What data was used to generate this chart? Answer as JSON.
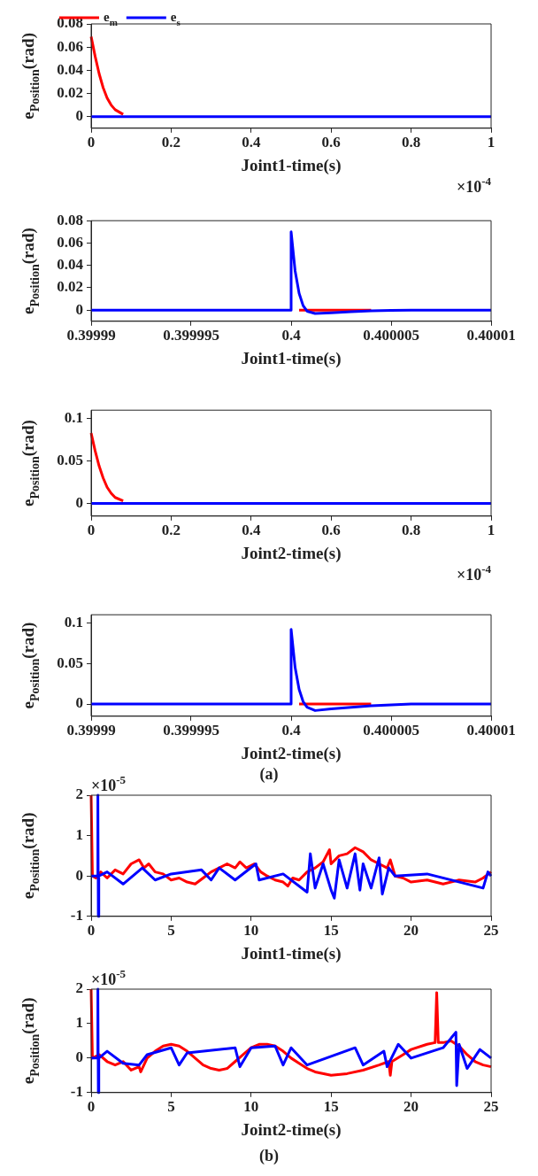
{
  "chart_data": [
    {
      "type": "line",
      "xlabel": "Joint1-time(s)",
      "ylabel": "e$_{Position}$(rad)",
      "xlim": [
        0,
        1
      ],
      "xticks": [
        0,
        0.2,
        0.4,
        0.6,
        0.8,
        1
      ],
      "ylim": [
        -0.01,
        0.08
      ],
      "yticks": [
        0,
        0.02,
        0.04,
        0.06,
        0.08
      ],
      "legend": "top left",
      "annotations": [
        "×10$^{-4}$"
      ],
      "series": [
        {
          "name": "e$_{m}$",
          "color": "#ff0000",
          "x": [
            0,
            0.01,
            0.02,
            0.03,
            0.04,
            0.05,
            0.06,
            0.08
          ],
          "values": [
            0.069,
            0.052,
            0.037,
            0.025,
            0.016,
            0.01,
            0.006,
            0.002
          ]
        },
        {
          "name": "e$_{s}$",
          "color": "#0000ff",
          "x": [
            0,
            1
          ],
          "values": [
            0,
            0
          ]
        }
      ]
    },
    {
      "type": "line",
      "xlabel": "Joint1-time(s)",
      "ylabel": "e$_{Position}$(rad)",
      "xlim": [
        0.39999,
        0.40001
      ],
      "xticks": [
        0.39999,
        0.399995,
        0.4,
        0.400005,
        0.40001
      ],
      "ylim": [
        -0.01,
        0.08
      ],
      "yticks": [
        0,
        0.02,
        0.04,
        0.06,
        0.08
      ],
      "series": [
        {
          "color": "#ff0000",
          "x": [
            0.4000004,
            0.400004
          ],
          "values": [
            0,
            0
          ]
        },
        {
          "color": "#0000ff",
          "x": [
            0.39999,
            0.4,
            0.4,
            0.4000002,
            0.4000004,
            0.4000006,
            0.4000008,
            0.4000012,
            0.400002,
            0.400003,
            0.400004,
            0.400005,
            0.400006,
            0.40001
          ],
          "values": [
            0,
            0,
            0.07,
            0.035,
            0.015,
            0.004,
            -0.001,
            -0.003,
            -0.0025,
            -0.0015,
            -0.0007,
            -0.0002,
            0,
            0
          ]
        }
      ]
    },
    {
      "type": "line",
      "xlabel": "Joint2-time(s)",
      "ylabel": "e$_{Position}$(rad)",
      "xlim": [
        0,
        1
      ],
      "xticks": [
        0,
        0.2,
        0.4,
        0.6,
        0.8,
        1
      ],
      "ylim": [
        -0.015,
        0.11
      ],
      "yticks": [
        0,
        0.05,
        0.1
      ],
      "annotations": [
        "×10$^{-4}$"
      ],
      "series": [
        {
          "color": "#ff0000",
          "x": [
            0,
            0.01,
            0.02,
            0.03,
            0.04,
            0.05,
            0.06,
            0.08
          ],
          "values": [
            0.083,
            0.062,
            0.044,
            0.03,
            0.019,
            0.012,
            0.007,
            0.003
          ]
        },
        {
          "color": "#0000ff",
          "x": [
            0,
            1
          ],
          "values": [
            0,
            0
          ]
        }
      ]
    },
    {
      "type": "line",
      "xlabel": "Joint2-time(s)",
      "ylabel": "e$_{Position}$(rad)",
      "xlim": [
        0.39999,
        0.40001
      ],
      "xticks": [
        0.39999,
        0.399995,
        0.4,
        0.400005,
        0.40001
      ],
      "ylim": [
        -0.015,
        0.11
      ],
      "yticks": [
        0,
        0.05,
        0.1
      ],
      "annotations": [
        "(a)"
      ],
      "series": [
        {
          "color": "#ff0000",
          "x": [
            0.4000004,
            0.400004
          ],
          "values": [
            0,
            0
          ]
        },
        {
          "color": "#0000ff",
          "x": [
            0.39999,
            0.4,
            0.4,
            0.4000002,
            0.4000004,
            0.4000006,
            0.4000008,
            0.4000012,
            0.400002,
            0.400003,
            0.400004,
            0.400005,
            0.400006,
            0.40001
          ],
          "values": [
            0,
            0,
            0.092,
            0.045,
            0.018,
            0.003,
            -0.004,
            -0.008,
            -0.006,
            -0.004,
            -0.002,
            -0.001,
            0,
            0
          ]
        }
      ]
    },
    {
      "type": "line",
      "xlabel": "Joint1-time(s)",
      "ylabel": "e$_{Position}$(rad)",
      "xlim": [
        0,
        25
      ],
      "xticks": [
        0,
        5,
        10,
        15,
        20,
        25
      ],
      "ylim": [
        -1,
        2
      ],
      "yticks": [
        -1,
        0,
        1,
        2
      ],
      "annotations": [
        "×10$^{-5}$"
      ],
      "series": [
        {
          "color": "#ff0000",
          "x": [
            0,
            0.05,
            0.08,
            0.3,
            0.6,
            1,
            1.5,
            2,
            2.5,
            3,
            3.3,
            3.6,
            4,
            4.5,
            5,
            5.5,
            6,
            6.5,
            7,
            7.5,
            8,
            8.5,
            9,
            9.3,
            9.7,
            10.2,
            10.6,
            11,
            11.5,
            12,
            12.3,
            12.6,
            13,
            13.5,
            14,
            14.5,
            14.9,
            15,
            15.5,
            16,
            16.5,
            17,
            17.5,
            18,
            18.5,
            18.7,
            19,
            19.5,
            20,
            21,
            22,
            23,
            24,
            24.5,
            25
          ],
          "values": [
            2,
            2,
            0,
            -0.05,
            0.1,
            -0.05,
            0.15,
            0.05,
            0.3,
            0.4,
            0.2,
            0.3,
            0.1,
            0.05,
            -0.1,
            -0.05,
            -0.15,
            -0.2,
            -0.05,
            0.1,
            0.2,
            0.3,
            0.2,
            0.35,
            0.2,
            0.3,
            0.1,
            0,
            -0.1,
            -0.15,
            -0.25,
            -0.05,
            -0.1,
            0.1,
            0.2,
            0.35,
            0.65,
            0.3,
            0.5,
            0.55,
            0.7,
            0.6,
            0.4,
            0.3,
            0.2,
            0.4,
            0,
            -0.05,
            -0.15,
            -0.1,
            -0.2,
            -0.1,
            -0.15,
            -0.05,
            0.1
          ]
        },
        {
          "color": "#0000ff",
          "x": [
            0,
            0.4,
            0.42,
            0.45,
            0.48,
            1,
            2,
            3.2,
            4,
            5,
            6.9,
            7.5,
            8,
            9,
            10.3,
            10.5,
            12,
            13.5,
            13.7,
            14,
            14.5,
            15,
            15.2,
            15.5,
            16,
            16.5,
            16.8,
            17,
            17.5,
            18,
            18.2,
            18.6,
            19,
            21,
            24.5,
            24.8,
            25
          ],
          "values": [
            0,
            0,
            2,
            -1,
            0,
            0.1,
            -0.2,
            0.2,
            -0.1,
            0.05,
            0.15,
            -0.1,
            0.2,
            -0.1,
            0.3,
            -0.1,
            0.05,
            -0.4,
            0.55,
            -0.3,
            0.3,
            -0.35,
            -0.55,
            0.4,
            -0.3,
            0.55,
            -0.35,
            0.3,
            -0.3,
            0.45,
            -0.45,
            0.2,
            0,
            0.05,
            -0.3,
            0.1,
            0
          ]
        }
      ]
    },
    {
      "type": "line",
      "xlabel": "Joint2-time(s)",
      "ylabel": "e$_{Position}$(rad)",
      "xlim": [
        0,
        25
      ],
      "xticks": [
        0,
        5,
        10,
        15,
        20,
        25
      ],
      "ylim": [
        -1,
        2
      ],
      "yticks": [
        -1,
        0,
        1,
        2
      ],
      "annotations": [
        "×10$^{-5}$",
        "(b)"
      ],
      "series": [
        {
          "color": "#ff0000",
          "x": [
            0,
            0.05,
            0.08,
            0.5,
            1,
            1.5,
            2,
            2.5,
            3,
            3.1,
            3.5,
            4,
            4.5,
            5,
            5.5,
            6,
            6.5,
            7,
            7.5,
            8,
            8.5,
            9,
            9.5,
            10,
            10.5,
            11,
            11.5,
            12,
            12.5,
            13,
            13.5,
            14,
            15,
            16,
            17,
            18,
            18.6,
            18.7,
            18.8,
            19.5,
            20,
            21,
            21.5,
            21.6,
            21.7,
            22,
            22.5,
            23,
            23.5,
            24,
            24.5,
            25
          ],
          "values": [
            2,
            2,
            0,
            0.1,
            -0.1,
            -0.2,
            -0.1,
            -0.35,
            -0.25,
            -0.4,
            0,
            0.2,
            0.35,
            0.4,
            0.35,
            0.2,
            0,
            -0.2,
            -0.3,
            -0.35,
            -0.3,
            -0.1,
            0.1,
            0.3,
            0.4,
            0.4,
            0.35,
            0.2,
            0,
            -0.15,
            -0.3,
            -0.4,
            -0.5,
            -0.45,
            -0.35,
            -0.2,
            -0.1,
            -0.5,
            -0.1,
            0.1,
            0.25,
            0.4,
            0.45,
            1.9,
            0.45,
            0.45,
            0.5,
            0.35,
            0.1,
            -0.1,
            -0.2,
            -0.25
          ]
        },
        {
          "color": "#0000ff",
          "x": [
            0,
            0.4,
            0.42,
            0.45,
            0.48,
            1,
            2,
            3,
            3.5,
            5,
            5.5,
            6,
            9,
            9.3,
            10,
            11.5,
            12,
            12.5,
            13.5,
            16.5,
            17,
            18.3,
            18.5,
            19.2,
            20,
            22,
            22.8,
            22.85,
            23,
            23.5,
            24.3,
            25
          ],
          "values": [
            0,
            0,
            2,
            -1,
            0,
            0.2,
            -0.15,
            -0.2,
            0.1,
            0.3,
            -0.2,
            0.15,
            0.3,
            -0.25,
            0.3,
            0.35,
            -0.2,
            0.3,
            -0.2,
            0.3,
            -0.2,
            0.2,
            -0.25,
            0.4,
            0,
            0.3,
            0.75,
            -0.8,
            0.4,
            -0.3,
            0.25,
            0
          ]
        }
      ]
    }
  ]
}
